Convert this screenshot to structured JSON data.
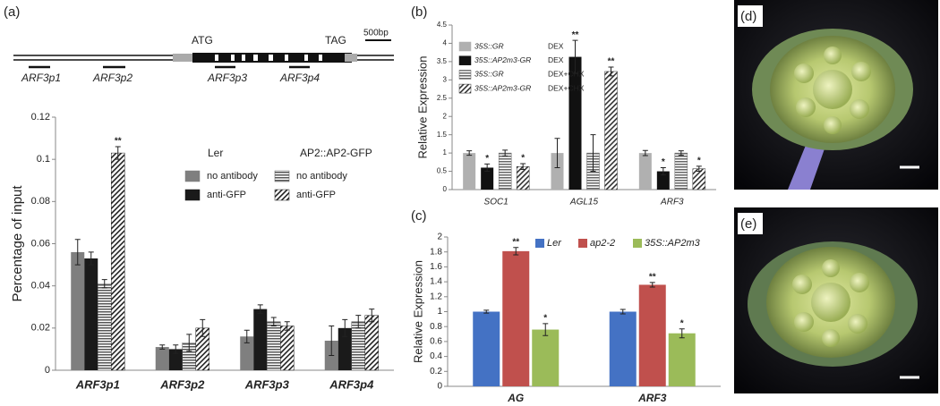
{
  "panels": {
    "a": "(a)",
    "b": "(b)",
    "c": "(c)",
    "d": "(d)",
    "e": "(e)"
  },
  "gene_map": {
    "start_codon": "ATG",
    "stop_codon": "TAG",
    "scale": "500bp",
    "primers": [
      "ARF3p1",
      "ARF3p2",
      "ARF3p3",
      "ARF3p4"
    ]
  },
  "chart_data": [
    {
      "type": "bar",
      "ylabel": "Percentage of input",
      "categories": [
        "ARF3p1",
        "ARF3p2",
        "ARF3p3",
        "ARF3p4"
      ],
      "ylim": [
        0,
        0.12
      ],
      "yticks": [
        0,
        0.02,
        0.04,
        0.06,
        0.08,
        0.1,
        0.12
      ],
      "series": [
        {
          "name": "no antibody",
          "group": "Ler",
          "color": "#7f7f7f",
          "fill_style": "solid",
          "values": [
            0.056,
            0.011,
            0.016,
            0.014
          ],
          "errors": [
            0.006,
            0.001,
            0.003,
            0.007
          ],
          "significance": [
            null,
            null,
            null,
            null
          ]
        },
        {
          "name": "anti-GFP",
          "group": "Ler",
          "color": "#1a1a1a",
          "fill_style": "solid",
          "values": [
            0.053,
            0.01,
            0.029,
            0.02
          ],
          "errors": [
            0.003,
            0.002,
            0.002,
            0.004
          ],
          "significance": [
            null,
            null,
            null,
            null
          ]
        },
        {
          "name": "no antibody",
          "group": "AP2::AP2-GFP",
          "color": "#555555",
          "fill_style": "horizontal-stripes",
          "values": [
            0.041,
            0.013,
            0.023,
            0.023
          ],
          "errors": [
            0.002,
            0.004,
            0.002,
            0.003
          ],
          "significance": [
            null,
            null,
            null,
            null
          ]
        },
        {
          "name": "anti-GFP",
          "group": "AP2::AP2-GFP",
          "color": "#222222",
          "fill_style": "diagonal-hatch",
          "values": [
            0.103,
            0.02,
            0.021,
            0.026
          ],
          "errors": [
            0.003,
            0.004,
            0.002,
            0.003
          ],
          "significance": [
            "**",
            null,
            null,
            null
          ]
        }
      ]
    },
    {
      "type": "bar",
      "ylabel": "Relative Expression",
      "categories": [
        "SOC1",
        "AGL15",
        "ARF3"
      ],
      "ylim": [
        0,
        4.5
      ],
      "yticks": [
        0,
        0.5,
        1,
        1.5,
        2,
        2.5,
        3,
        3.5,
        4,
        4.5
      ],
      "series": [
        {
          "name": "35S::GR",
          "treatment": "DEX",
          "color": "#b0b0b0",
          "fill_style": "solid",
          "values": [
            1.0,
            1.0,
            1.0
          ],
          "errors": [
            0.06,
            0.4,
            0.07
          ],
          "significance": [
            null,
            null,
            null
          ]
        },
        {
          "name": "35S::AP2m3-GR",
          "treatment": "DEX",
          "color": "#111111",
          "fill_style": "solid",
          "values": [
            0.6,
            3.63,
            0.5
          ],
          "errors": [
            0.1,
            0.45,
            0.1
          ],
          "significance": [
            "*",
            "**",
            "*"
          ]
        },
        {
          "name": "35S::GR",
          "treatment": "DEX+CHX",
          "color": "#666666",
          "fill_style": "horizontal-stripes",
          "values": [
            1.0,
            1.0,
            1.0
          ],
          "errors": [
            0.08,
            0.5,
            0.06
          ],
          "significance": [
            null,
            null,
            null
          ]
        },
        {
          "name": "35S::AP2m3-GR",
          "treatment": "DEX+CHX",
          "color": "#333333",
          "fill_style": "diagonal-hatch",
          "values": [
            0.63,
            3.23,
            0.57
          ],
          "errors": [
            0.08,
            0.12,
            0.07
          ],
          "significance": [
            "*",
            "**",
            "*"
          ]
        }
      ]
    },
    {
      "type": "bar",
      "ylabel": "Relative Expression",
      "categories": [
        "AG",
        "ARF3"
      ],
      "ylim": [
        0,
        2
      ],
      "yticks": [
        0,
        0.2,
        0.4,
        0.6,
        0.8,
        1,
        1.2,
        1.4,
        1.6,
        1.8,
        2
      ],
      "series": [
        {
          "name": "Ler",
          "color": "#4472c4",
          "fill_style": "solid",
          "values": [
            1.0,
            1.0
          ],
          "errors": [
            0.02,
            0.03
          ],
          "significance": [
            null,
            null
          ]
        },
        {
          "name": "ap2-2",
          "color": "#c0504d",
          "fill_style": "solid",
          "values": [
            1.81,
            1.36
          ],
          "errors": [
            0.05,
            0.03
          ],
          "significance": [
            "**",
            "**"
          ]
        },
        {
          "name": "35S::AP2m3",
          "color": "#9bbb59",
          "fill_style": "solid",
          "values": [
            0.76,
            0.71
          ],
          "errors": [
            0.08,
            0.06
          ],
          "significance": [
            "*",
            "*"
          ]
        }
      ]
    }
  ]
}
